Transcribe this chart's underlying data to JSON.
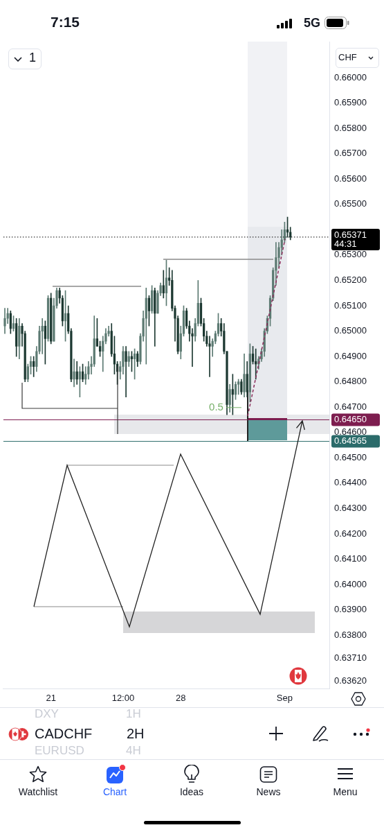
{
  "chart_data": {
    "type": "candlestick",
    "title": "CADCHF",
    "categories": [
      null,
      null,
      null,
      null,
      null,
      null,
      null,
      null,
      null,
      null,
      null,
      null,
      null,
      null,
      null,
      null,
      "21",
      null,
      null,
      null,
      null,
      null,
      null,
      null,
      null,
      null,
      null,
      null,
      null,
      null,
      null,
      null,
      null,
      null,
      null,
      null,
      null,
      null,
      null,
      null,
      null,
      "12:00",
      null,
      null,
      null,
      null,
      null,
      null,
      null,
      null,
      null,
      null,
      null,
      null,
      null,
      null,
      null,
      null,
      null,
      null,
      null,
      "28",
      null,
      null,
      null,
      null,
      null,
      null,
      null,
      null,
      null,
      null,
      null,
      null,
      null,
      null,
      null,
      null,
      null,
      null,
      null,
      null,
      null,
      null,
      null,
      null,
      null,
      null,
      null,
      null,
      null,
      null,
      null,
      null,
      null,
      null,
      null,
      "Sep",
      null,
      null,
      null,
      null,
      null,
      null,
      null,
      null,
      null,
      null,
      null,
      null,
      null,
      null,
      null
    ],
    "ohlc": [
      [
        0.6502,
        0.6509,
        0.6499,
        0.6505
      ],
      [
        0.6505,
        0.6509,
        0.6503,
        0.6507
      ],
      [
        0.6507,
        0.6508,
        0.6499,
        0.6501
      ],
      [
        0.6501,
        0.6506,
        0.65,
        0.6503
      ],
      [
        0.6503,
        0.6505,
        0.649,
        0.6494
      ],
      [
        0.6494,
        0.6505,
        0.6489,
        0.6502
      ],
      [
        0.6502,
        0.6503,
        0.6494,
        0.6499
      ],
      [
        0.6499,
        0.65,
        0.648,
        0.6481
      ],
      [
        0.6481,
        0.6487,
        0.648,
        0.6486
      ],
      [
        0.6486,
        0.649,
        0.6483,
        0.6488
      ],
      [
        0.6488,
        0.649,
        0.6482,
        0.6486
      ],
      [
        0.6486,
        0.6494,
        0.6484,
        0.6492
      ],
      [
        0.6492,
        0.6502,
        0.6491,
        0.65
      ],
      [
        0.65,
        0.6505,
        0.6491,
        0.6502
      ],
      [
        0.6502,
        0.6504,
        0.6487,
        0.6497
      ],
      [
        0.6497,
        0.6514,
        0.6496,
        0.6513
      ],
      [
        0.6513,
        0.6515,
        0.6495,
        0.6496
      ],
      [
        0.6496,
        0.6513,
        0.6496,
        0.651
      ],
      [
        0.651,
        0.6517,
        0.6509,
        0.6516
      ],
      [
        0.6516,
        0.6517,
        0.6511,
        0.6513
      ],
      [
        0.6513,
        0.6514,
        0.6502,
        0.6504
      ],
      [
        0.6504,
        0.6516,
        0.6496,
        0.6507
      ],
      [
        0.6507,
        0.651,
        0.6499,
        0.65
      ],
      [
        0.65,
        0.6501,
        0.648,
        0.6481
      ],
      [
        0.6481,
        0.6489,
        0.6478,
        0.6484
      ],
      [
        0.6484,
        0.6488,
        0.6479,
        0.6481
      ],
      [
        0.6481,
        0.6486,
        0.6474,
        0.6484
      ],
      [
        0.6484,
        0.6487,
        0.648,
        0.6481
      ],
      [
        0.6481,
        0.6486,
        0.6479,
        0.6483
      ],
      [
        0.6483,
        0.6488,
        0.6481,
        0.6486
      ],
      [
        0.6486,
        0.649,
        0.6483,
        0.6487
      ],
      [
        0.6487,
        0.6506,
        0.6486,
        0.6497
      ],
      [
        0.6497,
        0.6505,
        0.6494,
        0.6494
      ],
      [
        0.6494,
        0.6496,
        0.649,
        0.6492
      ],
      [
        0.6492,
        0.6498,
        0.6484,
        0.6496
      ],
      [
        0.6496,
        0.6501,
        0.6495,
        0.6499
      ],
      [
        0.6499,
        0.6502,
        0.6498,
        0.65
      ],
      [
        0.65,
        0.6503,
        0.649,
        0.6491
      ],
      [
        0.6491,
        0.6498,
        0.6483,
        0.6487
      ],
      [
        0.6487,
        0.6488,
        0.6479,
        0.6484
      ],
      [
        0.6484,
        0.6488,
        0.6481,
        0.6486
      ],
      [
        0.6486,
        0.6494,
        0.6483,
        0.6492
      ],
      [
        0.6492,
        0.6494,
        0.6474,
        0.6488
      ],
      [
        0.6488,
        0.6492,
        0.6486,
        0.649
      ],
      [
        0.649,
        0.6492,
        0.6484,
        0.6489
      ],
      [
        0.6489,
        0.6493,
        0.6481,
        0.6491
      ],
      [
        0.6491,
        0.6492,
        0.6486,
        0.6488
      ],
      [
        0.6488,
        0.6499,
        0.6487,
        0.6498
      ],
      [
        0.6498,
        0.6508,
        0.6496,
        0.6505
      ],
      [
        0.6505,
        0.6517,
        0.6487,
        0.6513
      ],
      [
        0.6513,
        0.6514,
        0.6502,
        0.6508
      ],
      [
        0.6508,
        0.6518,
        0.6507,
        0.6516
      ],
      [
        0.6516,
        0.6517,
        0.6494,
        0.6507
      ],
      [
        0.6507,
        0.6516,
        0.6507,
        0.6515
      ],
      [
        0.6515,
        0.6519,
        0.6514,
        0.6518
      ],
      [
        0.6518,
        0.6524,
        0.6513,
        0.6515
      ],
      [
        0.6515,
        0.6528,
        0.651,
        0.6521
      ],
      [
        0.6521,
        0.6525,
        0.6518,
        0.652
      ],
      [
        0.652,
        0.6524,
        0.6508,
        0.6509
      ],
      [
        0.6509,
        0.651,
        0.6496,
        0.6505
      ],
      [
        0.6505,
        0.6506,
        0.6491,
        0.6492
      ],
      [
        0.6492,
        0.6502,
        0.6489,
        0.6499
      ],
      [
        0.6499,
        0.651,
        0.6498,
        0.6508
      ],
      [
        0.6508,
        0.6509,
        0.6501,
        0.6502
      ],
      [
        0.6502,
        0.6504,
        0.6496,
        0.6499
      ],
      [
        0.6499,
        0.6501,
        0.6486,
        0.6498
      ],
      [
        0.6498,
        0.6505,
        0.6496,
        0.6503
      ],
      [
        0.6503,
        0.652,
        0.6502,
        0.6511
      ],
      [
        0.6511,
        0.6513,
        0.6502,
        0.6503
      ],
      [
        0.6503,
        0.6505,
        0.6496,
        0.6498
      ],
      [
        0.6498,
        0.65,
        0.6494,
        0.6495
      ],
      [
        0.6495,
        0.6498,
        0.6482,
        0.6494
      ],
      [
        0.6494,
        0.6497,
        0.649,
        0.6496
      ],
      [
        0.6496,
        0.65,
        0.6495,
        0.6499
      ],
      [
        0.6499,
        0.6507,
        0.6498,
        0.6503
      ],
      [
        0.6503,
        0.6505,
        0.6498,
        0.65
      ],
      [
        0.65,
        0.6503,
        0.6491,
        0.6492
      ],
      [
        0.6492,
        0.6492,
        0.6467,
        0.6471
      ],
      [
        0.6471,
        0.6479,
        0.6468,
        0.6477
      ],
      [
        0.6477,
        0.6483,
        0.6467,
        0.6475
      ],
      [
        0.6475,
        0.648,
        0.6473,
        0.6479
      ],
      [
        0.6479,
        0.6481,
        0.6475,
        0.648
      ],
      [
        0.648,
        0.6481,
        0.6475,
        0.6476
      ],
      [
        0.6476,
        0.6491,
        0.6474,
        0.6483
      ],
      [
        0.6483,
        0.6488,
        0.6474,
        0.6476
      ],
      [
        0.6476,
        0.6495,
        0.6472,
        0.6491
      ],
      [
        0.6491,
        0.6494,
        0.6487,
        0.6488
      ],
      [
        0.6488,
        0.6493,
        0.6481,
        0.6487
      ],
      [
        0.6487,
        0.649,
        0.6485,
        0.6489
      ],
      [
        0.6489,
        0.6493,
        0.6488,
        0.6492
      ],
      [
        0.6492,
        0.6501,
        0.649,
        0.65
      ],
      [
        0.65,
        0.6506,
        0.6499,
        0.6505
      ],
      [
        0.6505,
        0.6514,
        0.6502,
        0.6513
      ],
      [
        0.6513,
        0.6525,
        0.6512,
        0.6524
      ],
      [
        0.6524,
        0.6535,
        0.6518,
        0.6529
      ],
      [
        0.6529,
        0.6535,
        0.6525,
        0.6533
      ],
      [
        0.6533,
        0.654,
        0.653,
        0.6536
      ],
      [
        0.6536,
        0.6543,
        0.6535,
        0.654
      ],
      [
        0.654,
        0.6545,
        0.6537,
        0.6539
      ],
      [
        0.6539,
        0.6541,
        0.6536,
        0.65371
      ],
      null,
      null,
      null,
      null,
      null,
      null,
      null,
      null,
      null,
      null,
      null,
      null,
      null
    ],
    "colors": [
      "#5c7a72",
      "#5c7a72",
      "#1c3831",
      "#5c7a72",
      "#1c3831",
      "#5c7a72",
      "#1c3831",
      "#1c3831",
      "#5c7a72",
      "#5c7a72",
      "#1c3831",
      "#5c7a72",
      "#5c7a72",
      "#5c7a72",
      "#1c3831",
      "#5c7a72",
      "#1c3831",
      "#5c7a72",
      "#5c7a72",
      "#1c3831",
      "#1c3831",
      "#5c7a72",
      "#1c3831",
      "#1c3831",
      "#5c7a72",
      "#1c3831",
      "#5c7a72",
      "#1c3831",
      "#5c7a72",
      "#5c7a72",
      "#5c7a72",
      "#5c7a72",
      "#1c3831",
      "#1c3831",
      "#5c7a72",
      "#5c7a72",
      "#5c7a72",
      "#1c3831",
      "#1c3831",
      "#1c3831",
      "#5c7a72",
      "#5c7a72",
      "#1c3831",
      "#5c7a72",
      "#1c3831",
      "#5c7a72",
      "#1c3831",
      "#5c7a72",
      "#5c7a72",
      "#5c7a72",
      "#1c3831",
      "#5c7a72",
      "#1c3831",
      "#5c7a72",
      "#5c7a72",
      "#1c3831",
      "#5c7a72",
      "#1c3831",
      "#1c3831",
      "#1c3831",
      "#1c3831",
      "#5c7a72",
      "#5c7a72",
      "#1c3831",
      "#1c3831",
      "#1c3831",
      "#5c7a72",
      "#5c7a72",
      "#1c3831",
      "#1c3831",
      "#1c3831",
      "#1c3831",
      "#5c7a72",
      "#5c7a72",
      "#5c7a72",
      "#1c3831",
      "#1c3831",
      "#1c3831",
      "#5c7a72",
      "#1c3831",
      "#5c7a72",
      "#5c7a72",
      "#1c3831",
      "#5c7a72",
      "#1c3831",
      "#5c7a72",
      "#1c3831",
      "#1c3831",
      "#5c7a72",
      "#5c7a72",
      "#5c7a72",
      "#5c7a72",
      "#5c7a72",
      "#5c7a72",
      "#5c7a72",
      "#5c7a72",
      "#5c7a72",
      "#5c7a72",
      "#1c3831",
      "#1c3831",
      null,
      null,
      null,
      null,
      null,
      null,
      null,
      null,
      null,
      null,
      null,
      null,
      null
    ],
    "ylim": [
      0.6359,
      0.6614
    ],
    "yticks": [
      {
        "value": 0.6362,
        "label": "0.63620"
      },
      {
        "value": 0.6371,
        "label": "0.63710"
      },
      {
        "value": 0.638,
        "label": "0.63800"
      },
      {
        "value": 0.639,
        "label": "0.63900"
      },
      {
        "value": 0.64,
        "label": "0.64000"
      },
      {
        "value": 0.641,
        "label": "0.64100"
      },
      {
        "value": 0.642,
        "label": "0.64200"
      },
      {
        "value": 0.643,
        "label": "0.64300"
      },
      {
        "value": 0.644,
        "label": "0.64400"
      },
      {
        "value": 0.645,
        "label": "0.64500"
      },
      {
        "value": 0.646,
        "label": "0.64600"
      },
      {
        "value": 0.647,
        "label": "0.64700"
      },
      {
        "value": 0.648,
        "label": "0.64800"
      },
      {
        "value": 0.649,
        "label": "0.64900"
      },
      {
        "value": 0.65,
        "label": "0.65000"
      },
      {
        "value": 0.651,
        "label": "0.65100"
      },
      {
        "value": 0.652,
        "label": "0.65200"
      },
      {
        "value": 0.653,
        "label": "0.65300"
      },
      {
        "value": 0.655,
        "label": "0.65500"
      },
      {
        "value": 0.656,
        "label": "0.65600"
      },
      {
        "value": 0.657,
        "label": "0.65700"
      },
      {
        "value": 0.658,
        "label": "0.65800"
      },
      {
        "value": 0.659,
        "label": "0.65900"
      },
      {
        "value": 0.66,
        "label": "0.66000"
      }
    ],
    "ref_lines": [
      {
        "axis": "y",
        "value": 0.65371,
        "label": "0.65371",
        "color": "#000000",
        "line_style": "dotted"
      },
      {
        "axis": "y",
        "value": 0.6465,
        "label": "0.64650",
        "color": "#7d1d4f"
      },
      {
        "axis": "y",
        "value": 0.64565,
        "label": "0.64565",
        "color": "#2b6b6a"
      }
    ],
    "annotations": [
      "7:15",
      "5G",
      "1",
      "CHF",
      "44:31",
      "0.5",
      "DXY",
      "1H",
      "2H",
      "EURUSD",
      "4H",
      "Watchlist",
      "Chart",
      "Ideas",
      "News",
      "Menu"
    ]
  }
}
